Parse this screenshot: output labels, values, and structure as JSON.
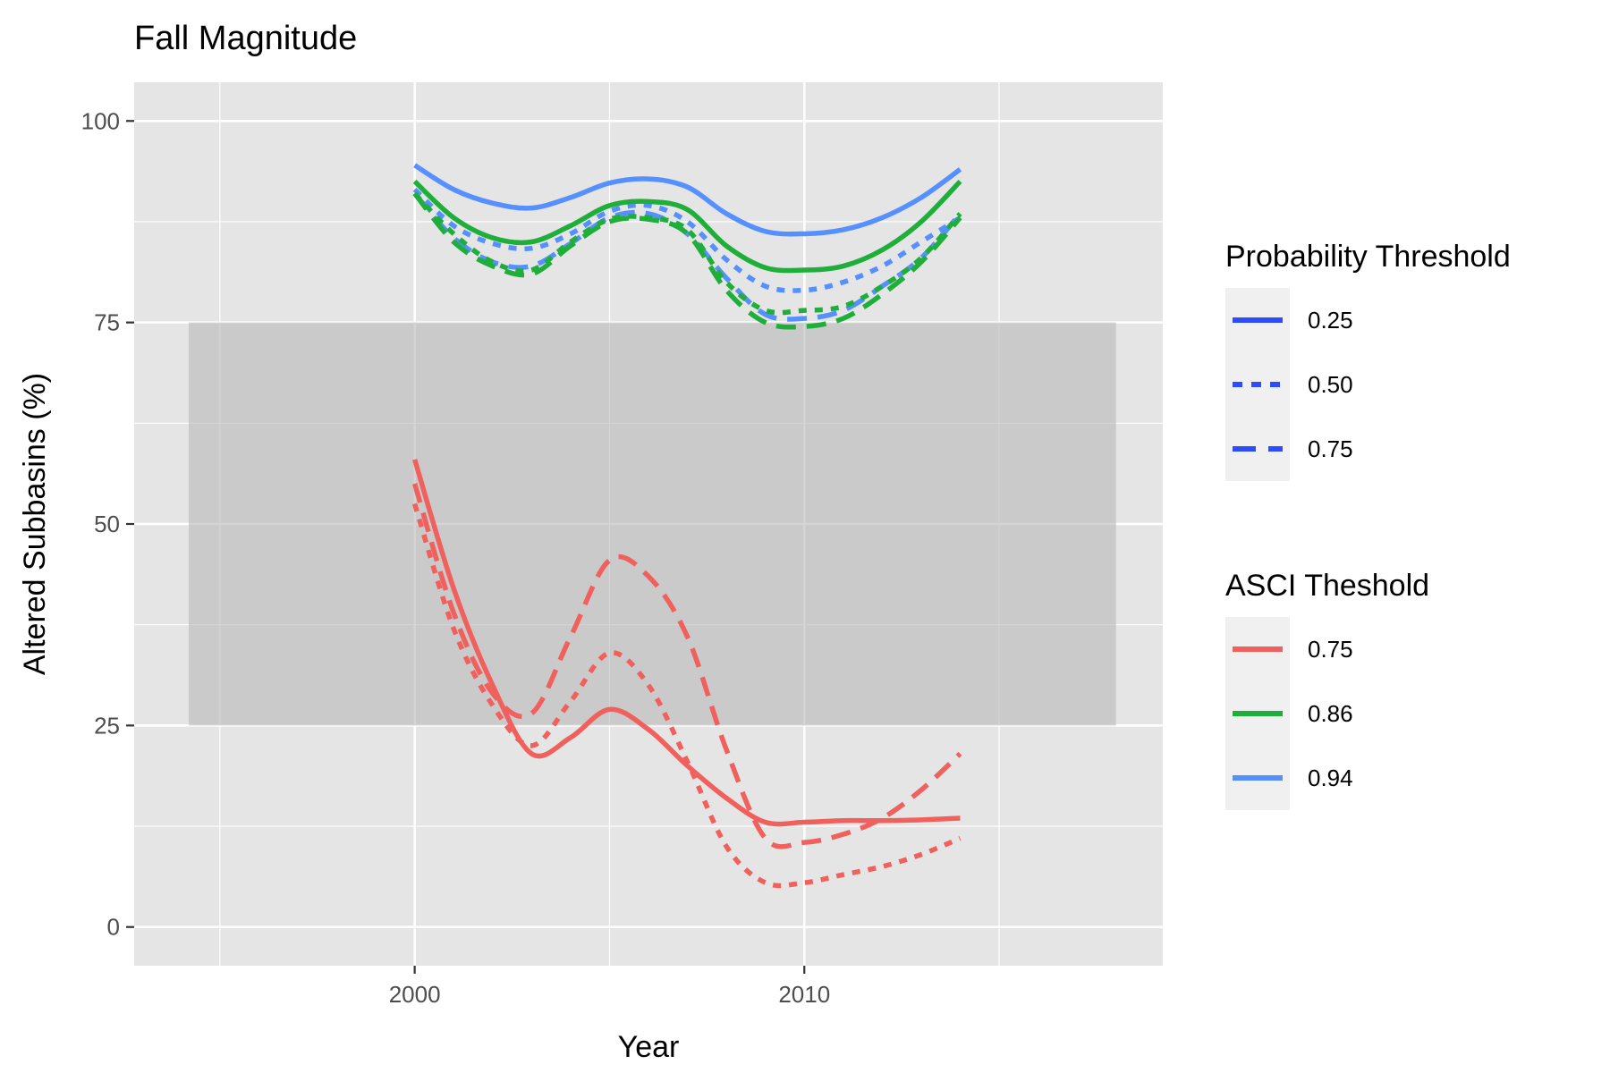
{
  "chart_data": {
    "type": "line",
    "title": "Fall Magnitude",
    "xlabel": "Year",
    "ylabel": "Altered Subbasins (%)",
    "xlim": [
      1992.8,
      2019.2
    ],
    "ylim": [
      -4.8,
      104.8
    ],
    "x_ticks": [
      2000,
      2010
    ],
    "x_minor_ticks": [
      1995,
      2005,
      2015
    ],
    "y_ticks": [
      0,
      25,
      50,
      75,
      100
    ],
    "y_minor_ticks": [
      12.5,
      37.5,
      62.5,
      87.5
    ],
    "grid": true,
    "shaded_band": {
      "x": [
        1994.2,
        2018.0
      ],
      "y": [
        25,
        75
      ]
    },
    "x": [
      2000,
      2001,
      2002,
      2003,
      2004,
      2005,
      2006,
      2007,
      2008,
      2009,
      2010,
      2011,
      2012,
      2013,
      2014
    ],
    "series": [
      {
        "color_key": "0.94",
        "linetype_key": "0.25",
        "values": [
          94.5,
          91.5,
          89.8,
          89.2,
          90.5,
          92.3,
          92.8,
          91.8,
          88.5,
          86.3,
          86.0,
          86.5,
          88.0,
          90.5,
          94.0
        ]
      },
      {
        "color_key": "0.94",
        "linetype_key": "0.50",
        "values": [
          91.5,
          87.0,
          84.8,
          84.2,
          86.0,
          88.8,
          89.5,
          87.5,
          82.8,
          79.5,
          79.0,
          80.0,
          82.0,
          85.0,
          88.0
        ]
      },
      {
        "color_key": "0.94",
        "linetype_key": "0.75",
        "values": [
          91.0,
          85.5,
          82.5,
          82.0,
          84.8,
          88.0,
          88.5,
          86.0,
          80.5,
          76.0,
          75.5,
          76.5,
          79.5,
          83.0,
          88.5
        ]
      },
      {
        "color_key": "0.86",
        "linetype_key": "0.25",
        "values": [
          92.5,
          88.0,
          85.5,
          85.0,
          87.0,
          89.5,
          90.0,
          89.0,
          84.5,
          81.8,
          81.5,
          82.0,
          84.0,
          87.5,
          92.5
        ]
      },
      {
        "color_key": "0.86",
        "linetype_key": "0.50",
        "values": [
          91.0,
          86.0,
          82.5,
          81.5,
          85.0,
          87.8,
          88.0,
          86.5,
          80.0,
          76.5,
          76.5,
          77.0,
          79.5,
          83.0,
          88.5
        ]
      },
      {
        "color_key": "0.86",
        "linetype_key": "0.75",
        "values": [
          91.0,
          85.0,
          82.0,
          81.0,
          84.5,
          87.5,
          87.8,
          86.0,
          79.0,
          75.0,
          74.5,
          75.5,
          78.5,
          82.5,
          88.0
        ]
      },
      {
        "color_key": "0.75",
        "linetype_key": "0.25",
        "values": [
          58.0,
          42.0,
          30.0,
          21.5,
          23.5,
          27.0,
          24.5,
          20.0,
          16.0,
          13.0,
          13.0,
          13.2,
          13.2,
          13.3,
          13.5
        ]
      },
      {
        "color_key": "0.75",
        "linetype_key": "0.50",
        "values": [
          52.5,
          37.0,
          27.5,
          22.5,
          28.0,
          34.0,
          30.0,
          20.5,
          10.0,
          5.5,
          5.5,
          6.5,
          7.5,
          9.0,
          11.0
        ]
      },
      {
        "color_key": "0.75",
        "linetype_key": "0.75",
        "values": [
          55.0,
          39.0,
          29.0,
          26.5,
          36.0,
          45.5,
          43.5,
          36.0,
          22.0,
          11.0,
          10.5,
          11.5,
          13.5,
          17.0,
          21.5
        ]
      }
    ],
    "legends": [
      {
        "title": "Probability Threshold",
        "type": "linetype",
        "color": "#2d4cff",
        "entries": [
          {
            "label": "0.25",
            "dash": "solid"
          },
          {
            "label": "0.50",
            "dash": "dotted"
          },
          {
            "label": "0.75",
            "dash": "dashed"
          }
        ]
      },
      {
        "title": "ASCI Theshold",
        "type": "color",
        "entries": [
          {
            "label": "0.75",
            "color": "#f0605d"
          },
          {
            "label": "0.86",
            "color": "#1fae3a"
          },
          {
            "label": "0.94",
            "color": "#5690ff"
          }
        ]
      }
    ],
    "colors": {
      "panel_background": "#e5e5e5",
      "grid": "#ffffff",
      "band": "#b8b8b8"
    }
  }
}
